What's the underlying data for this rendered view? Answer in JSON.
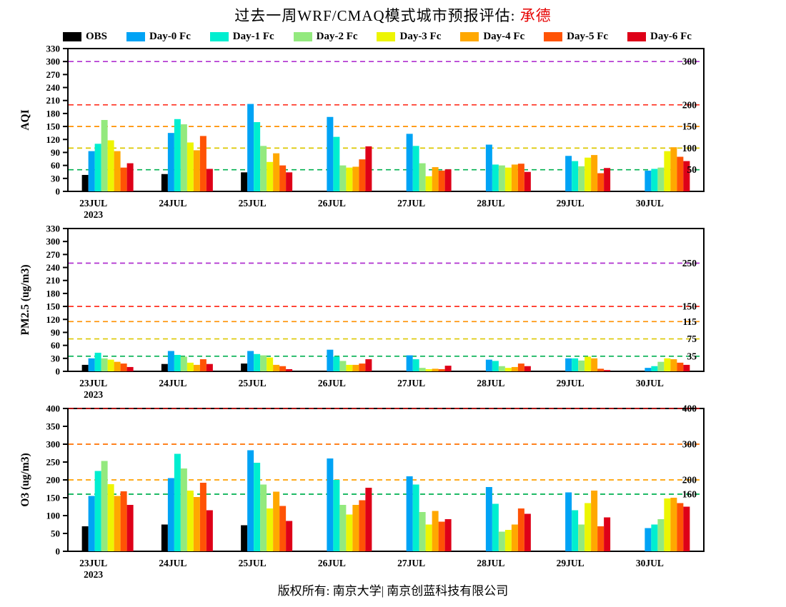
{
  "title": {
    "prefix": "过去一周WRF/CMAQ模式城市预报评估: ",
    "city": "承德",
    "city_color": "#e60000"
  },
  "legend": [
    {
      "label": "OBS",
      "color": "#000000"
    },
    {
      "label": "Day-0 Fc",
      "color": "#00a3f5"
    },
    {
      "label": "Day-1 Fc",
      "color": "#00eed0"
    },
    {
      "label": "Day-2 Fc",
      "color": "#93e97e"
    },
    {
      "label": "Day-3 Fc",
      "color": "#edf502"
    },
    {
      "label": "Day-4 Fc",
      "color": "#ffa800"
    },
    {
      "label": "Day-5 Fc",
      "color": "#ff5305"
    },
    {
      "label": "Day-6 Fc",
      "color": "#de0018"
    }
  ],
  "year_label": "2023",
  "footer": "版权所有: 南京大学| 南京创蓝科技有限公司",
  "chart_data": [
    {
      "id": "aqi",
      "type": "bar",
      "ylabel": "AQI",
      "ylim": [
        0,
        330
      ],
      "ytick_step": 30,
      "grid": false,
      "legend_position": "top",
      "categories": [
        "23JUL",
        "24JUL",
        "25JUL",
        "26JUL",
        "27JUL",
        "28JUL",
        "29JUL",
        "30JUL"
      ],
      "series": [
        {
          "name": "OBS",
          "values": [
            38,
            40,
            44,
            null,
            null,
            null,
            null,
            null
          ]
        },
        {
          "name": "Day-0 Fc",
          "values": [
            93,
            135,
            202,
            172,
            133,
            108,
            82,
            48
          ]
        },
        {
          "name": "Day-1 Fc",
          "values": [
            110,
            167,
            160,
            126,
            105,
            62,
            70,
            52
          ]
        },
        {
          "name": "Day-2 Fc",
          "values": [
            165,
            155,
            105,
            60,
            65,
            60,
            58,
            55
          ]
        },
        {
          "name": "Day-3 Fc",
          "values": [
            118,
            113,
            68,
            55,
            35,
            55,
            78,
            93
          ]
        },
        {
          "name": "Day-4 Fc",
          "values": [
            93,
            95,
            88,
            57,
            56,
            62,
            84,
            102
          ]
        },
        {
          "name": "Day-5 Fc",
          "values": [
            55,
            128,
            60,
            74,
            48,
            64,
            42,
            80
          ]
        },
        {
          "name": "Day-6 Fc",
          "values": [
            65,
            52,
            44,
            104,
            51,
            45,
            54,
            70
          ]
        }
      ],
      "ref_lines": [
        {
          "value": 50,
          "color": "#00b050",
          "label": "50"
        },
        {
          "value": 100,
          "color": "#dcc800",
          "label": "100"
        },
        {
          "value": 150,
          "color": "#ff9000",
          "label": "150"
        },
        {
          "value": 200,
          "color": "#ff3020",
          "label": "200"
        },
        {
          "value": 300,
          "color": "#b030d0",
          "label": "300"
        }
      ]
    },
    {
      "id": "pm25",
      "type": "bar",
      "ylabel": "PM2.5 (ug/m3)",
      "ylim": [
        0,
        330
      ],
      "ytick_step": 30,
      "grid": false,
      "legend_position": "top",
      "categories": [
        "23JUL",
        "24JUL",
        "25JUL",
        "26JUL",
        "27JUL",
        "28JUL",
        "29JUL",
        "30JUL"
      ],
      "series": [
        {
          "name": "OBS",
          "values": [
            15,
            17,
            18,
            null,
            null,
            null,
            null,
            null
          ]
        },
        {
          "name": "Day-0 Fc",
          "values": [
            30,
            47,
            47,
            50,
            37,
            27,
            30,
            8
          ]
        },
        {
          "name": "Day-1 Fc",
          "values": [
            43,
            38,
            40,
            34,
            28,
            24,
            30,
            12
          ]
        },
        {
          "name": "Day-2 Fc",
          "values": [
            30,
            34,
            37,
            24,
            8,
            12,
            25,
            22
          ]
        },
        {
          "name": "Day-3 Fc",
          "values": [
            27,
            20,
            32,
            15,
            5,
            8,
            34,
            30
          ]
        },
        {
          "name": "Day-4 Fc",
          "values": [
            22,
            15,
            15,
            15,
            6,
            10,
            30,
            28
          ]
        },
        {
          "name": "Day-5 Fc",
          "values": [
            18,
            28,
            12,
            18,
            5,
            18,
            6,
            20
          ]
        },
        {
          "name": "Day-6 Fc",
          "values": [
            10,
            17,
            5,
            28,
            13,
            12,
            3,
            15
          ]
        }
      ],
      "ref_lines": [
        {
          "value": 35,
          "color": "#00b050",
          "label": "35"
        },
        {
          "value": 75,
          "color": "#dcc800",
          "label": "75"
        },
        {
          "value": 115,
          "color": "#ff9000",
          "label": "115"
        },
        {
          "value": 150,
          "color": "#ff3020",
          "label": "150"
        },
        {
          "value": 250,
          "color": "#b030d0",
          "label": "250"
        }
      ]
    },
    {
      "id": "o3",
      "type": "bar",
      "ylabel": "O3 (ug/m3)",
      "ylim": [
        0,
        400
      ],
      "ytick_step": 50,
      "grid": false,
      "legend_position": "top",
      "categories": [
        "23JUL",
        "24JUL",
        "25JUL",
        "26JUL",
        "27JUL",
        "28JUL",
        "29JUL",
        "30JUL"
      ],
      "series": [
        {
          "name": "OBS",
          "values": [
            70,
            75,
            73,
            null,
            null,
            null,
            null,
            null
          ]
        },
        {
          "name": "Day-0 Fc",
          "values": [
            155,
            205,
            283,
            260,
            210,
            180,
            165,
            65
          ]
        },
        {
          "name": "Day-1 Fc",
          "values": [
            225,
            273,
            248,
            200,
            187,
            133,
            115,
            75
          ]
        },
        {
          "name": "Day-2 Fc",
          "values": [
            253,
            232,
            187,
            130,
            110,
            55,
            75,
            90
          ]
        },
        {
          "name": "Day-3 Fc",
          "values": [
            188,
            170,
            120,
            103,
            75,
            60,
            135,
            148
          ]
        },
        {
          "name": "Day-4 Fc",
          "values": [
            155,
            152,
            167,
            130,
            113,
            75,
            170,
            150
          ]
        },
        {
          "name": "Day-5 Fc",
          "values": [
            168,
            192,
            127,
            143,
            83,
            120,
            70,
            135
          ]
        },
        {
          "name": "Day-6 Fc",
          "values": [
            130,
            115,
            85,
            178,
            90,
            105,
            95,
            125
          ]
        }
      ],
      "ref_lines": [
        {
          "value": 160,
          "color": "#00b050",
          "label": "160"
        },
        {
          "value": 200,
          "color": "#ffa000",
          "label": "200"
        },
        {
          "value": 300,
          "color": "#ff7000",
          "label": "300"
        },
        {
          "value": 400,
          "color": "#c00000",
          "label": "400"
        }
      ]
    }
  ]
}
